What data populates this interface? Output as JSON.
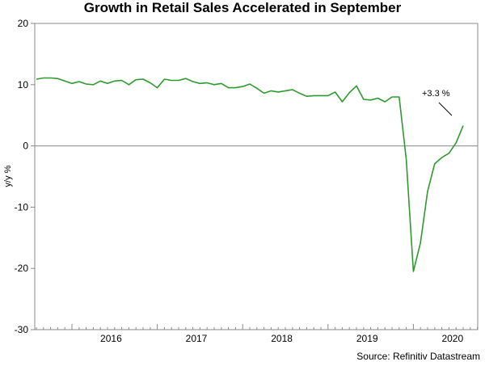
{
  "chart_data": {
    "type": "line",
    "title": "Growth in Retail Sales Accelerated in September",
    "ylabel": "y/y %",
    "xlabel": "",
    "ylim": [
      -30,
      20
    ],
    "yticks": [
      20,
      10,
      0,
      -10,
      -20,
      -30
    ],
    "ytick_labels": [
      "20",
      "10",
      "0",
      "-10",
      "-20",
      "-30"
    ],
    "year_labels": [
      "2016",
      "2017",
      "2018",
      "2019",
      "2020"
    ],
    "grid": false,
    "zero_line": true,
    "line_color": "#2e9a2e",
    "series": [
      {
        "values": [
          10.9,
          11.1,
          11.1,
          11.0,
          10.6,
          10.2,
          10.5,
          10.1,
          10.0,
          10.6,
          10.2,
          10.6,
          10.7,
          10.0,
          10.8,
          10.9,
          10.3,
          9.5,
          10.9,
          10.7,
          10.7,
          11.0,
          10.5,
          10.2,
          10.3,
          10.0,
          10.2,
          9.5,
          9.5,
          9.7,
          10.1,
          9.4,
          8.6,
          9.0,
          8.8,
          9.0,
          9.2,
          8.6,
          8.1,
          8.2,
          8.2,
          8.2,
          8.8,
          7.2,
          8.7,
          9.8,
          7.6,
          7.5,
          7.8,
          7.2,
          8.0,
          8.0,
          -2.2,
          -20.5,
          -15.8,
          -7.4,
          -2.9,
          -1.9,
          -1.2,
          0.5,
          3.3
        ]
      }
    ],
    "annotation": {
      "text": "+3.3 %"
    },
    "source": "Source: Refinitiv Datastream"
  }
}
